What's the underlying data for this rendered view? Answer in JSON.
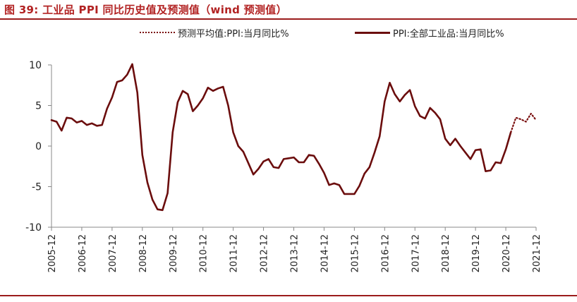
{
  "figure_title": "图 39:  工业品 PPI 同比历史值及预测值（wind 预测值）",
  "legend": {
    "forecast_label": "预测平均值:PPI:当月同比%",
    "actual_label": "PPI:全部工业品:当月同比%"
  },
  "colors": {
    "accent": "#b22222",
    "line": "#6b0d0d",
    "forecast": "#7a0f0f",
    "axis": "#888888"
  },
  "chart_data": {
    "type": "line",
    "title": "工业品 PPI 同比历史值及预测值（wind 预测值）",
    "xlabel": "",
    "ylabel": "",
    "ylim": [
      -10,
      10
    ],
    "yticks": [
      10,
      5,
      0,
      -5,
      -10
    ],
    "xticks": [
      "2005-12",
      "2006-12",
      "2007-12",
      "2008-12",
      "2009-12",
      "2010-12",
      "2011-12",
      "2012-12",
      "2013-12",
      "2014-12",
      "2015-12",
      "2016-12",
      "2017-12",
      "2018-12",
      "2019-12",
      "2020-12",
      "2021-12"
    ],
    "grid": false,
    "legend_position": "top",
    "series": [
      {
        "name": "PPI:全部工业品:当月同比%",
        "style": "solid",
        "points": [
          [
            "2005-12",
            3.2
          ],
          [
            "2006-02",
            3.0
          ],
          [
            "2006-04",
            1.9
          ],
          [
            "2006-06",
            3.5
          ],
          [
            "2006-08",
            3.4
          ],
          [
            "2006-10",
            2.9
          ],
          [
            "2006-12",
            3.1
          ],
          [
            "2007-02",
            2.6
          ],
          [
            "2007-04",
            2.8
          ],
          [
            "2007-06",
            2.5
          ],
          [
            "2007-08",
            2.6
          ],
          [
            "2007-10",
            4.6
          ],
          [
            "2007-12",
            6.0
          ],
          [
            "2008-02",
            7.9
          ],
          [
            "2008-04",
            8.1
          ],
          [
            "2008-06",
            8.8
          ],
          [
            "2008-08",
            10.1
          ],
          [
            "2008-10",
            6.6
          ],
          [
            "2008-12",
            -1.1
          ],
          [
            "2009-02",
            -4.5
          ],
          [
            "2009-04",
            -6.6
          ],
          [
            "2009-06",
            -7.8
          ],
          [
            "2009-08",
            -7.9
          ],
          [
            "2009-10",
            -5.8
          ],
          [
            "2009-12",
            1.7
          ],
          [
            "2010-02",
            5.4
          ],
          [
            "2010-04",
            6.8
          ],
          [
            "2010-06",
            6.4
          ],
          [
            "2010-08",
            4.3
          ],
          [
            "2010-10",
            5.0
          ],
          [
            "2010-12",
            5.9
          ],
          [
            "2011-02",
            7.2
          ],
          [
            "2011-04",
            6.8
          ],
          [
            "2011-06",
            7.1
          ],
          [
            "2011-08",
            7.3
          ],
          [
            "2011-10",
            5.0
          ],
          [
            "2011-12",
            1.7
          ],
          [
            "2012-02",
            0.0
          ],
          [
            "2012-04",
            -0.7
          ],
          [
            "2012-06",
            -2.1
          ],
          [
            "2012-08",
            -3.5
          ],
          [
            "2012-10",
            -2.8
          ],
          [
            "2012-12",
            -1.9
          ],
          [
            "2013-02",
            -1.6
          ],
          [
            "2013-04",
            -2.6
          ],
          [
            "2013-06",
            -2.7
          ],
          [
            "2013-08",
            -1.6
          ],
          [
            "2013-10",
            -1.5
          ],
          [
            "2013-12",
            -1.4
          ],
          [
            "2014-02",
            -2.0
          ],
          [
            "2014-04",
            -2.0
          ],
          [
            "2014-06",
            -1.1
          ],
          [
            "2014-08",
            -1.2
          ],
          [
            "2014-10",
            -2.2
          ],
          [
            "2014-12",
            -3.3
          ],
          [
            "2015-02",
            -4.8
          ],
          [
            "2015-04",
            -4.6
          ],
          [
            "2015-06",
            -4.8
          ],
          [
            "2015-08",
            -5.9
          ],
          [
            "2015-10",
            -5.9
          ],
          [
            "2015-12",
            -5.9
          ],
          [
            "2016-02",
            -4.9
          ],
          [
            "2016-04",
            -3.4
          ],
          [
            "2016-06",
            -2.6
          ],
          [
            "2016-08",
            -0.8
          ],
          [
            "2016-10",
            1.2
          ],
          [
            "2016-12",
            5.5
          ],
          [
            "2017-02",
            7.8
          ],
          [
            "2017-04",
            6.4
          ],
          [
            "2017-06",
            5.5
          ],
          [
            "2017-08",
            6.3
          ],
          [
            "2017-10",
            6.9
          ],
          [
            "2017-12",
            4.9
          ],
          [
            "2018-02",
            3.7
          ],
          [
            "2018-04",
            3.4
          ],
          [
            "2018-06",
            4.7
          ],
          [
            "2018-08",
            4.1
          ],
          [
            "2018-10",
            3.3
          ],
          [
            "2018-12",
            0.9
          ],
          [
            "2019-02",
            0.1
          ],
          [
            "2019-04",
            0.9
          ],
          [
            "2019-06",
            0.0
          ],
          [
            "2019-08",
            -0.8
          ],
          [
            "2019-10",
            -1.6
          ],
          [
            "2019-12",
            -0.5
          ],
          [
            "2020-02",
            -0.4
          ],
          [
            "2020-04",
            -3.1
          ],
          [
            "2020-06",
            -3.0
          ],
          [
            "2020-08",
            -2.0
          ],
          [
            "2020-10",
            -2.1
          ],
          [
            "2020-12",
            -0.4
          ],
          [
            "2021-02",
            1.7
          ]
        ]
      },
      {
        "name": "预测平均值:PPI:当月同比%",
        "style": "dotted",
        "points": [
          [
            "2021-02",
            1.7
          ],
          [
            "2021-04",
            3.5
          ],
          [
            "2021-06",
            3.3
          ],
          [
            "2021-08",
            3.0
          ],
          [
            "2021-10",
            4.0
          ],
          [
            "2021-12",
            3.2
          ]
        ]
      }
    ]
  }
}
